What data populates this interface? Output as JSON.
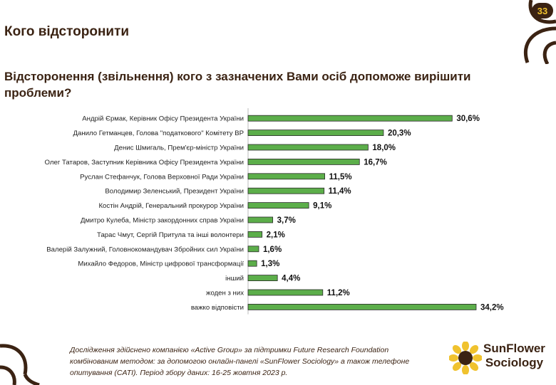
{
  "page_number": "33",
  "title": "Кого відсторонити",
  "question": "Відсторонення (звільнення) кого з зазначених Вами осіб допоможе вирішити проблеми?",
  "footnote": "Дослідження здійснено компанією «Active Group» за підтримки Future Research Foundation комбінованим методом: за допомогою онлайн-панелі «SunFlower Sociology» а також телефоне опитування (CATI). Період збору даних: 16-25 жовтня 2023 р.",
  "logo": {
    "line1": "SunFlower",
    "line2": "Sociology"
  },
  "colors": {
    "bar": "#5cae4a",
    "bar_border": "#2a2a2a",
    "brown": "#3b2313",
    "yellow": "#f0c22e"
  },
  "chart_data": {
    "type": "bar",
    "orientation": "horizontal",
    "title": "Відсторонення (звільнення) кого з зазначених Вами осіб допоможе вирішити проблеми?",
    "xlabel": "",
    "ylabel": "",
    "value_suffix": "%",
    "categories": [
      "Андрій Єрмак, Керівник Офісу Президента України",
      "Данило Гетманцев, Голова \"податкового\" Комітету ВР",
      "Денис Шмигаль, Прем'єр-міністр України",
      "Олег Татаров, Заступник Керівника Офісу Президента України",
      "Руслан Стефанчук, Голова Верховної Ради України",
      "Володимир Зеленський, Президент України",
      "Костін Андрій, Генеральний прокурор України",
      "Дмитро Кулеба, Міністр закордонних справ України",
      "Тарас Чмут, Сергій Притула та інші волонтери",
      "Валерій Залужний, Головнокомандувач Збройних сил України",
      "Михайло Федоров, Міністр цифрової трансформації",
      "інший",
      "жоден з них",
      "важко відповісти"
    ],
    "values": [
      30.6,
      20.3,
      18.0,
      16.7,
      11.5,
      11.4,
      9.1,
      3.7,
      2.1,
      1.6,
      1.3,
      4.4,
      11.2,
      34.2
    ],
    "value_labels": [
      "30,6%",
      "20,3%",
      "18,0%",
      "16,7%",
      "11,5%",
      "11,4%",
      "9,1%",
      "3,7%",
      "2,1%",
      "1,6%",
      "1,3%",
      "4,4%",
      "11,2%",
      "34,2%"
    ],
    "xlim": [
      0,
      34.2
    ]
  }
}
